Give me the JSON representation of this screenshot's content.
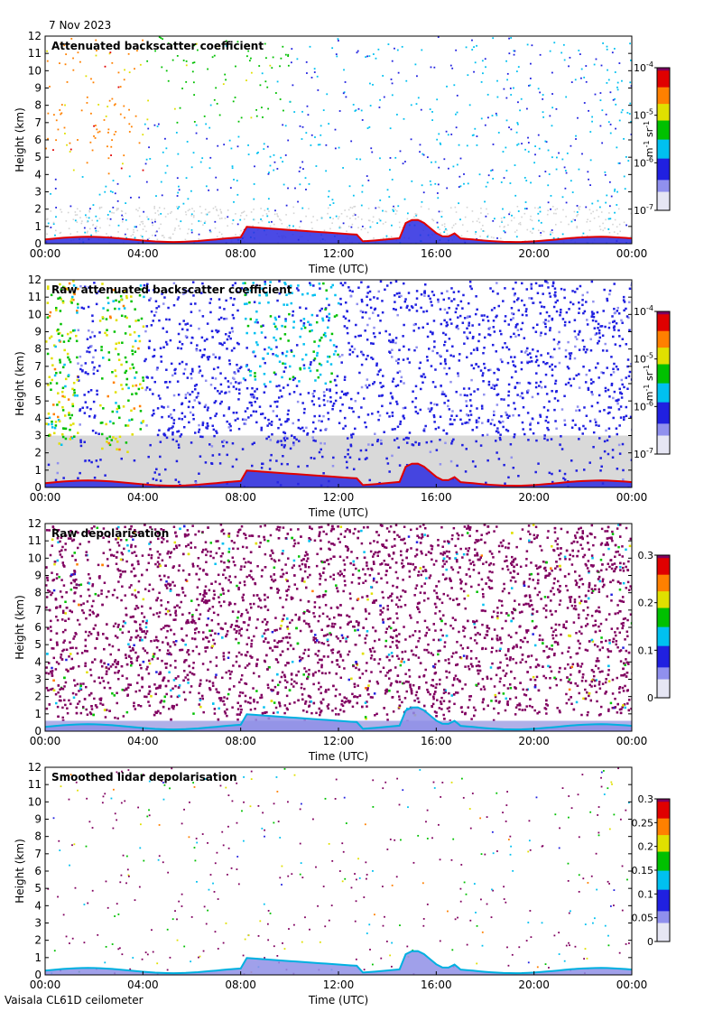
{
  "header": {
    "date": "7 Nov 2023"
  },
  "footer": {
    "instrument": "Vaisala CL61D ceilometer"
  },
  "chart_data": [
    {
      "type": "heatmap",
      "title": "Attenuated backscatter coefficient",
      "xlabel": "Time (UTC)",
      "ylabel": "Height (km)",
      "xlim": [
        "00:00",
        "24:00"
      ],
      "xticks": [
        "00:00",
        "04:00",
        "08:00",
        "12:00",
        "16:00",
        "20:00",
        "00:00"
      ],
      "ylim": [
        0,
        12
      ],
      "yticks": [
        "0",
        "1",
        "2",
        "3",
        "4",
        "5",
        "6",
        "7",
        "8",
        "9",
        "10",
        "11",
        "12"
      ],
      "colorbar": {
        "scale": "log",
        "range": [
          1e-07,
          0.0001
        ],
        "ticks": [
          "10-7",
          "10-6",
          "10-5",
          "10-4"
        ],
        "unit": "m-1 sr-1"
      },
      "grid": false
    },
    {
      "type": "heatmap",
      "title": "Raw attenuated backscatter coefficient",
      "xlabel": "Time (UTC)",
      "ylabel": "Height (km)",
      "xlim": [
        "00:00",
        "24:00"
      ],
      "xticks": [
        "00:00",
        "04:00",
        "08:00",
        "12:00",
        "16:00",
        "20:00",
        "00:00"
      ],
      "ylim": [
        0,
        12
      ],
      "yticks": [
        "0",
        "1",
        "2",
        "3",
        "4",
        "5",
        "6",
        "7",
        "8",
        "9",
        "10",
        "11",
        "12"
      ],
      "colorbar": {
        "scale": "log",
        "range": [
          1e-07,
          0.0001
        ],
        "ticks": [
          "10-7",
          "10-6",
          "10-5",
          "10-4"
        ],
        "unit": "m-1 sr-1"
      },
      "grid": false
    },
    {
      "type": "heatmap",
      "title": "Raw depolarisation",
      "xlabel": "Time (UTC)",
      "ylabel": "Height (km)",
      "xlim": [
        "00:00",
        "24:00"
      ],
      "xticks": [
        "00:00",
        "04:00",
        "08:00",
        "12:00",
        "16:00",
        "20:00",
        "00:00"
      ],
      "ylim": [
        0,
        12
      ],
      "yticks": [
        "0",
        "1",
        "2",
        "3",
        "4",
        "5",
        "6",
        "7",
        "8",
        "9",
        "10",
        "11",
        "12"
      ],
      "colorbar": {
        "scale": "linear",
        "range": [
          0,
          0.3
        ],
        "ticks": [
          "0",
          "0.1",
          "0.2",
          "0.3"
        ],
        "unit": ""
      },
      "grid": false
    },
    {
      "type": "heatmap",
      "title": "Smoothed lidar depolarisation",
      "xlabel": "Time (UTC)",
      "ylabel": "Height (km)",
      "xlim": [
        "00:00",
        "24:00"
      ],
      "xticks": [
        "00:00",
        "04:00",
        "08:00",
        "12:00",
        "16:00",
        "20:00",
        "00:00"
      ],
      "ylim": [
        0,
        12
      ],
      "yticks": [
        "0",
        "1",
        "2",
        "3",
        "4",
        "5",
        "6",
        "7",
        "8",
        "9",
        "10",
        "11",
        "12"
      ],
      "colorbar": {
        "scale": "linear",
        "range": [
          0,
          0.3
        ],
        "ticks": [
          "0",
          "0.05",
          "0.1",
          "0.15",
          "0.2",
          "0.25",
          "0.3"
        ],
        "unit": ""
      },
      "grid": false
    }
  ]
}
